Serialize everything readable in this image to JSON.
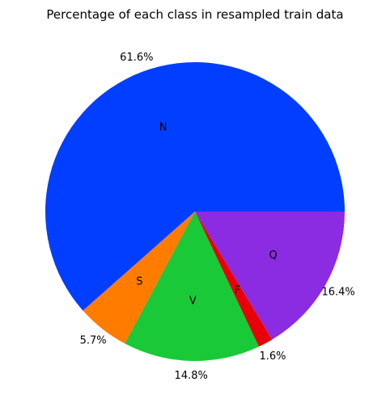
{
  "chart_data": {
    "type": "pie",
    "title": "Percentage of each class in resampled train data",
    "start_angle_deg": 0,
    "direction": "counterclockwise",
    "slices": [
      {
        "label": "N",
        "value": 61.6,
        "pct_label": "61.6%",
        "color": "#023eff"
      },
      {
        "label": "S",
        "value": 5.7,
        "pct_label": "5.7%",
        "color": "#ff7c00"
      },
      {
        "label": "V",
        "value": 14.8,
        "pct_label": "14.8%",
        "color": "#1ac938"
      },
      {
        "label": "F",
        "value": 1.6,
        "pct_label": "1.6%",
        "color": "#e8000b"
      },
      {
        "label": "Q",
        "value": 16.4,
        "pct_label": "16.4%",
        "color": "#8b2be2"
      }
    ]
  }
}
